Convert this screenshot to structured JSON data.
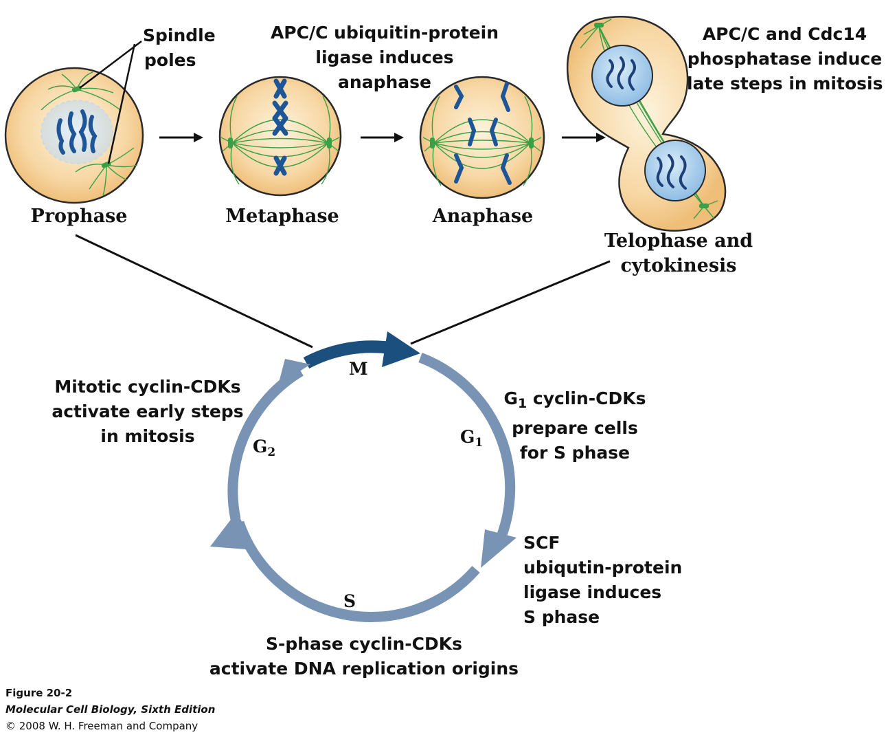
{
  "labels": {
    "spindle_poles": [
      "Spindle",
      "poles"
    ],
    "apc_anaphase": [
      "APC/C ubiquitin-protein",
      "ligase induces",
      "anaphase"
    ],
    "apc_cdc14": [
      "APC/C and Cdc14",
      "phosphatase induce",
      "late steps in mitosis"
    ],
    "mitotic_cdks": [
      "Mitotic cyclin-CDKs",
      "activate early steps",
      "in mitosis"
    ],
    "g1_cdks": {
      "prefix": "G",
      "sub": "1",
      "rest": " cyclin-CDKs",
      "lines": [
        "prepare cells",
        "for S phase"
      ]
    },
    "scf": [
      "SCF",
      "ubiqutin-protein",
      "ligase induces",
      "S phase"
    ],
    "s_cdks": [
      "S-phase cyclin-CDKs",
      "activate DNA replication origins"
    ]
  },
  "stages": {
    "prophase": "Prophase",
    "metaphase": "Metaphase",
    "anaphase": "Anaphase",
    "telophase": [
      "Telophase and",
      "cytokinesis"
    ]
  },
  "cycle_phases": {
    "m": "M",
    "g1": {
      "letter": "G",
      "sub": "1"
    },
    "g2": {
      "letter": "G",
      "sub": "2"
    },
    "s": "S"
  },
  "caption": {
    "figure": "Figure 20-2",
    "book": "Molecular Cell Biology, Sixth Edition",
    "copyright": "© 2008 W. H. Freeman and Company"
  },
  "colors": {
    "cell_fill": "#f6d19a",
    "cell_stroke": "#2a2a2a",
    "spindle": "#3aa046",
    "chromosome": "#1e5596",
    "nucleus": "#a7cdea",
    "cycle_arrow": "#7893b3",
    "m_arrow": "#1b4f7e"
  }
}
